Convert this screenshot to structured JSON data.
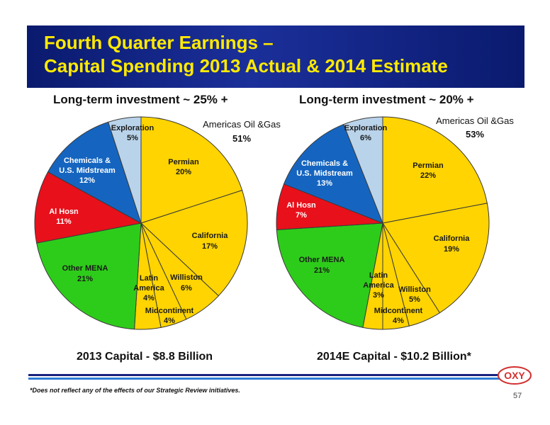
{
  "header": {
    "title_line1": "Fourth Quarter Earnings –",
    "title_line2": "Capital Spending 2013 Actual & 2014 Estimate",
    "accent_color": "#ffea00",
    "bar_color": "#0a1a6e"
  },
  "footer": {
    "footnote": "*Does not reflect any of the effects of our Strategic Review initiatives.",
    "page_number": "57",
    "logo_text": "OXY",
    "logo_color": "#d32f2f"
  },
  "chart_data": [
    {
      "type": "pie",
      "title": "Long-term investment ~ 25% +",
      "caption": "2013 Capital - $8.8 Billion",
      "group_label": "Americas Oil &Gas",
      "group_value": "51%",
      "slices": [
        {
          "label": "Permian",
          "value": 20,
          "color": "#ffd400"
        },
        {
          "label": "California",
          "value": 17,
          "color": "#ffd400"
        },
        {
          "label": "Williston",
          "value": 6,
          "color": "#ffd400"
        },
        {
          "label": "Midcontinent",
          "value": 4,
          "color": "#ffd400"
        },
        {
          "label": "Latin America",
          "value": 4,
          "color": "#ffd400"
        },
        {
          "label": "Other MENA",
          "value": 21,
          "color": "#2ecc1a"
        },
        {
          "label": "Al Hosn",
          "value": 11,
          "color": "#e8101a"
        },
        {
          "label": "Chemicals & U.S. Midstream",
          "value": 12,
          "color": "#1565c0"
        },
        {
          "label": "Exploration",
          "value": 5,
          "color": "#b9d3ea"
        }
      ]
    },
    {
      "type": "pie",
      "title": "Long-term investment ~ 20% +",
      "caption": "2014E Capital - $10.2 Billion*",
      "group_label": "Americas Oil &Gas",
      "group_value": "53%",
      "slices": [
        {
          "label": "Permian",
          "value": 22,
          "color": "#ffd400"
        },
        {
          "label": "California",
          "value": 19,
          "color": "#ffd400"
        },
        {
          "label": "Williston",
          "value": 5,
          "color": "#ffd400"
        },
        {
          "label": "Midcontinent",
          "value": 4,
          "color": "#ffd400"
        },
        {
          "label": "Latin America",
          "value": 3,
          "color": "#ffd400"
        },
        {
          "label": "Other MENA",
          "value": 21,
          "color": "#2ecc1a"
        },
        {
          "label": "Al Hosn",
          "value": 7,
          "color": "#e8101a"
        },
        {
          "label": "Chemicals & U.S. Midstream",
          "value": 13,
          "color": "#1565c0"
        },
        {
          "label": "Exploration",
          "value": 6,
          "color": "#b9d3ea"
        }
      ]
    }
  ]
}
